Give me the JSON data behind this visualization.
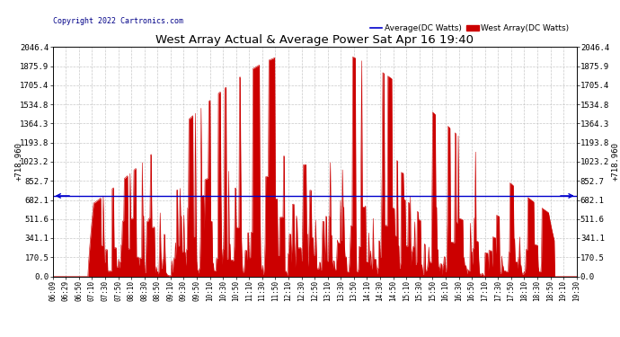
{
  "title": "West Array Actual & Average Power Sat Apr 16 19:40",
  "copyright": "Copyright 2022 Cartronics.com",
  "legend_average": "Average(DC Watts)",
  "legend_west": "West Array(DC Watts)",
  "average_value": 718.96,
  "ymax": 2046.4,
  "yticks": [
    0.0,
    170.5,
    341.1,
    511.6,
    682.1,
    852.7,
    1023.2,
    1193.8,
    1364.3,
    1534.8,
    1705.4,
    1875.9,
    2046.4
  ],
  "xtick_labels": [
    "06:09",
    "06:29",
    "06:50",
    "07:10",
    "07:30",
    "07:50",
    "08:10",
    "08:30",
    "08:50",
    "09:10",
    "09:30",
    "09:50",
    "10:10",
    "10:30",
    "10:50",
    "11:10",
    "11:30",
    "11:50",
    "12:10",
    "12:30",
    "12:50",
    "13:10",
    "13:30",
    "13:50",
    "14:10",
    "14:30",
    "14:50",
    "15:10",
    "15:30",
    "15:50",
    "16:10",
    "16:30",
    "16:50",
    "17:10",
    "17:30",
    "17:50",
    "18:10",
    "18:30",
    "18:50",
    "19:10",
    "19:30"
  ],
  "bg_color": "#ffffff",
  "fill_color": "#cc0000",
  "avg_line_color": "#0000cc",
  "title_color": "#000000",
  "copyright_color": "#000088",
  "legend_avg_color": "#0000cc",
  "legend_west_color": "#cc0000",
  "ylabel_left": "+718.960",
  "ylabel_right": "+718.960"
}
